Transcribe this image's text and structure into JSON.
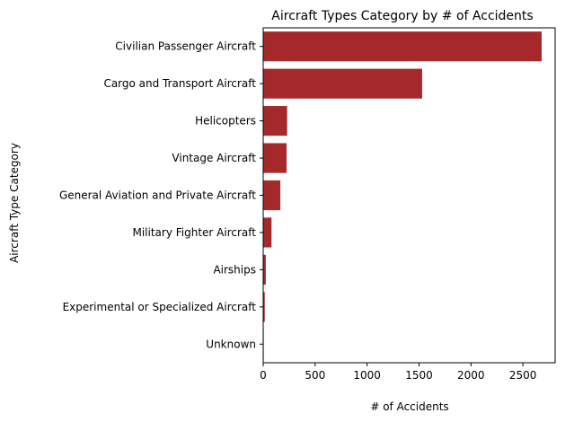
{
  "chart_data": {
    "type": "bar",
    "orientation": "horizontal",
    "title": "Aircraft Types Category by # of Accidents",
    "xlabel": "# of Accidents",
    "ylabel": "Aircraft Type Category",
    "categories": [
      "Civilian Passenger Aircraft",
      "Cargo and Transport Aircraft",
      "Helicopters",
      "Vintage Aircraft",
      "General Aviation and Private Aircraft",
      "Military Fighter Aircraft",
      "Airships",
      "Experimental or Specialized Aircraft",
      "Unknown"
    ],
    "values": [
      2680,
      1530,
      230,
      225,
      165,
      80,
      25,
      15,
      5
    ],
    "xlim": [
      0,
      2810
    ],
    "xticks": [
      0,
      500,
      1000,
      1500,
      2000,
      2500
    ],
    "grid": false,
    "legend": "none",
    "bar_color": "#a5292b"
  }
}
